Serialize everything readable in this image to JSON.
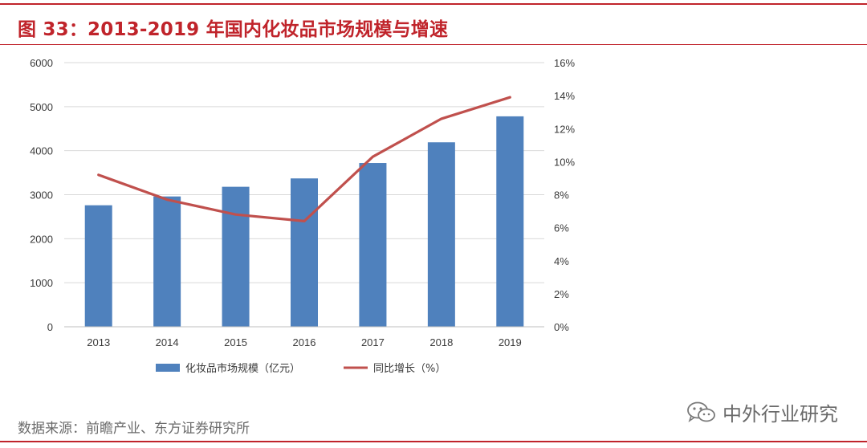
{
  "figure": {
    "title": "图 33：2013-2019 年国内化妆品市场规模与增速",
    "source": "数据来源：前瞻产业、东方证券研究所",
    "watermark": "中外行业研究"
  },
  "colors": {
    "accent": "#c0242b",
    "bar": "#4f81bd",
    "line": "#c0504d",
    "grid": "#d9d9d9"
  },
  "chart_data": {
    "type": "bar",
    "categories": [
      "2013",
      "2014",
      "2015",
      "2016",
      "2017",
      "2018",
      "2019"
    ],
    "series": [
      {
        "name": "化妆品市场规模（亿元）",
        "type": "bar",
        "axis": "left",
        "values": [
          2760,
          2960,
          3180,
          3370,
          3720,
          4190,
          4780
        ]
      },
      {
        "name": "同比增长（%）",
        "type": "line",
        "axis": "right",
        "values": [
          9.2,
          7.7,
          6.8,
          6.4,
          10.3,
          12.6,
          13.9
        ]
      }
    ],
    "y_left": {
      "min": 0,
      "max": 6000,
      "step": 1000,
      "ticks": [
        "0",
        "1000",
        "2000",
        "3000",
        "4000",
        "5000",
        "6000"
      ]
    },
    "y_right": {
      "min": 0,
      "max": 16,
      "step": 2,
      "ticks": [
        "0%",
        "2%",
        "4%",
        "6%",
        "8%",
        "10%",
        "12%",
        "14%",
        "16%"
      ]
    },
    "grid": true,
    "legend_position": "bottom"
  }
}
